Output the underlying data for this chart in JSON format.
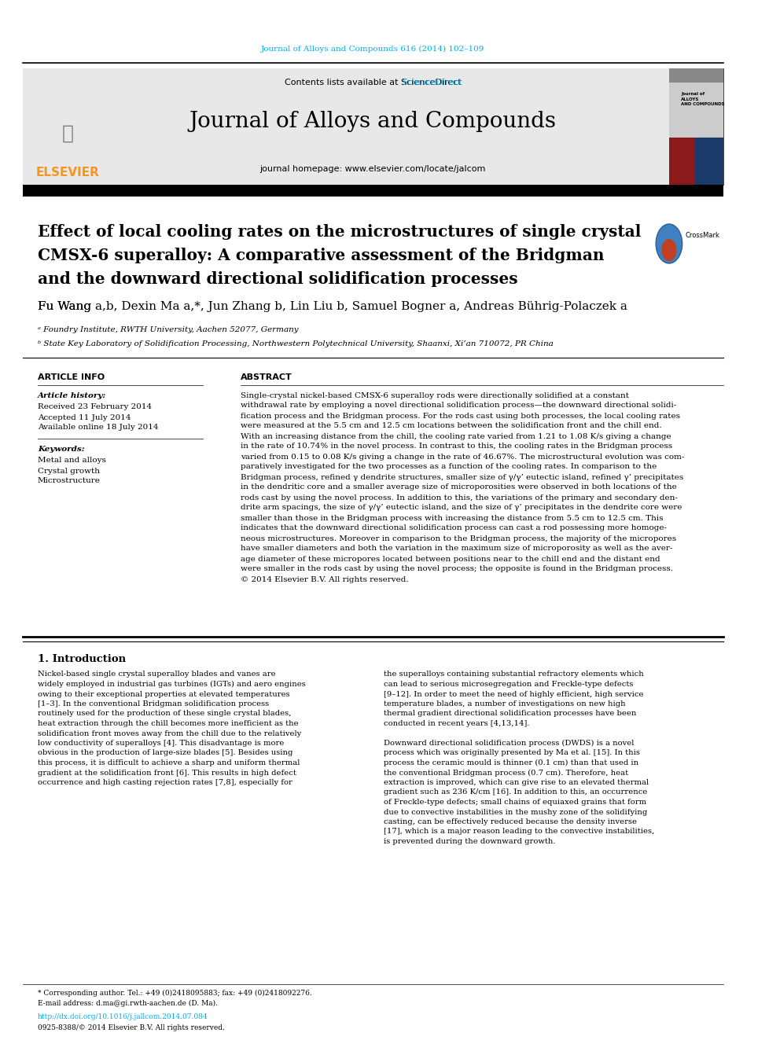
{
  "journal_ref": "Journal of Alloys and Compounds 616 (2014) 102–109",
  "journal_name": "Journal of Alloys and Compounds",
  "journal_homepage": "journal homepage: www.elsevier.com/locate/jalcom",
  "contents_text": "Contents lists available at ",
  "sciencedirect_text": "ScienceDirect",
  "title_line1": "Effect of local cooling rates on the microstructures of single crystal",
  "title_line2": "CMSX-6 superalloy: A comparative assessment of the Bridgman",
  "title_line3": "and the downward directional solidification processes",
  "authors": "Fu Wang ᵃʸᵇ, Dexin Ma ᵃ,*, Jun Zhang ᵇ, Lin Liu ᵇ, Samuel Bogner ᵃ, Andreas Bührig-Polaczek ᵃ",
  "affil_a": "ᵃ Foundry Institute, RWTH University, Aachen 52077, Germany",
  "affil_b": "ᵇ State Key Laboratory of Solidification Processing, Northwestern Polytechnical University, Shaanxi, Xi’an 710072, PR China",
  "article_info_header": "ARTICLE INFO",
  "abstract_header": "ABSTRACT",
  "article_history_header": "Article history:",
  "received": "Received 23 February 2014",
  "accepted": "Accepted 11 July 2014",
  "available": "Available online 18 July 2014",
  "keywords_header": "Keywords:",
  "keyword1": "Metal and alloys",
  "keyword2": "Crystal growth",
  "keyword3": "Microstructure",
  "abstract_text": "Single-crystal nickel-based CMSX-6 superalloy rods were directionally solidified at a constant\nwithdrawal rate by employing a novel directional solidification process—the downward directional solidi-\nfication process and the Bridgman process. For the rods cast using both processes, the local cooling rates\nwere measured at the 5.5 cm and 12.5 cm locations between the solidification front and the chill end.\nWith an increasing distance from the chill, the cooling rate varied from 1.21 to 1.08 K/s giving a change\nin the rate of 10.74% in the novel process. In contrast to this, the cooling rates in the Bridgman process\nvaried from 0.15 to 0.08 K/s giving a change in the rate of 46.67%. The microstructural evolution was com-\nparatively investigated for the two processes as a function of the cooling rates. In comparison to the\nBridgman process, refined γ dendrite structures, smaller size of γ/γ’ eutectic island, refined γ’ precipitates\nin the dendritic core and a smaller average size of microporosities were observed in both locations of the\nrods cast by using the novel process. In addition to this, the variations of the primary and secondary den-\ndrite arm spacings, the size of γ/γ’ eutectic island, and the size of γ’ precipitates in the dendrite core were\nsmaller than those in the Bridgman process with increasing the distance from 5.5 cm to 12.5 cm. This\nindicates that the downward directional solidification process can cast a rod possessing more homoge-\nneous microstructures. Moreover in comparison to the Bridgman process, the majority of the micropores\nhave smaller diameters and both the variation in the maximum size of microporosity as well as the aver-\nage diameter of these micropores located between positions near to the chill end and the distant end\nwere smaller in the rods cast by using the novel process; the opposite is found in the Bridgman process.\n© 2014 Elsevier B.V. All rights reserved.",
  "intro_header": "1. Introduction",
  "intro_col1": "Nickel-based single crystal superalloy blades and vanes are\nwidely employed in industrial gas turbines (IGTs) and aero engines\nowing to their exceptional properties at elevated temperatures\n[1–3]. In the conventional Bridgman solidification process\nroutinely used for the production of these single crystal blades,\nheat extraction through the chill becomes more inefficient as the\nsolidification front moves away from the chill due to the relatively\nlow conductivity of superalloys [4]. This disadvantage is more\nobvious in the production of large-size blades [5]. Besides using\nthis process, it is difficult to achieve a sharp and uniform thermal\ngradient at the solidification front [6]. This results in high defect\noccurrence and high casting rejection rates [7,8], especially for",
  "intro_col2": "the superalloys containing substantial refractory elements which\ncan lead to serious microsegregation and Freckle-type defects\n[9–12]. In order to meet the need of highly efficient, high service\ntemperature blades, a number of investigations on new high\nthermal gradient directional solidification processes have been\nconducted in recent years [4,13,14].\n\nDownward directional solidification process (DWDS) is a novel\nprocess which was originally presented by Ma et al. [15]. In this\nprocess the ceramic mould is thinner (0.1 cm) than that used in\nthe conventional Bridgman process (0.7 cm). Therefore, heat\nextraction is improved, which can give rise to an elevated thermal\ngradient such as 236 K/cm [16]. In addition to this, an occurrence\nof Freckle-type defects; small chains of equiaxed grains that form\ndue to convective instabilities in the mushy zone of the solidifying\ncasting, can be effectively reduced because the density inverse\n[17], which is a major reason leading to the convective instabilities,\nis prevented during the downward growth.",
  "footnote_line1": "* Corresponding author. Tel.: +49 (0)2418095883; fax: +49 (0)2418092276.",
  "footnote_line2": "E-mail address: d.ma@gi.rwth-aachen.de (D. Ma).",
  "doi_text": "http://dx.doi.org/10.1016/j.jallcom.2014.07.084",
  "issn_text": "0925-8388/© 2014 Elsevier B.V. All rights reserved.",
  "cyan_color": "#00AEEF",
  "orange_color": "#F7941D",
  "dark_color": "#1a1a1a",
  "header_bg": "#e8e8e8",
  "black_bar": "#1a1a1a"
}
